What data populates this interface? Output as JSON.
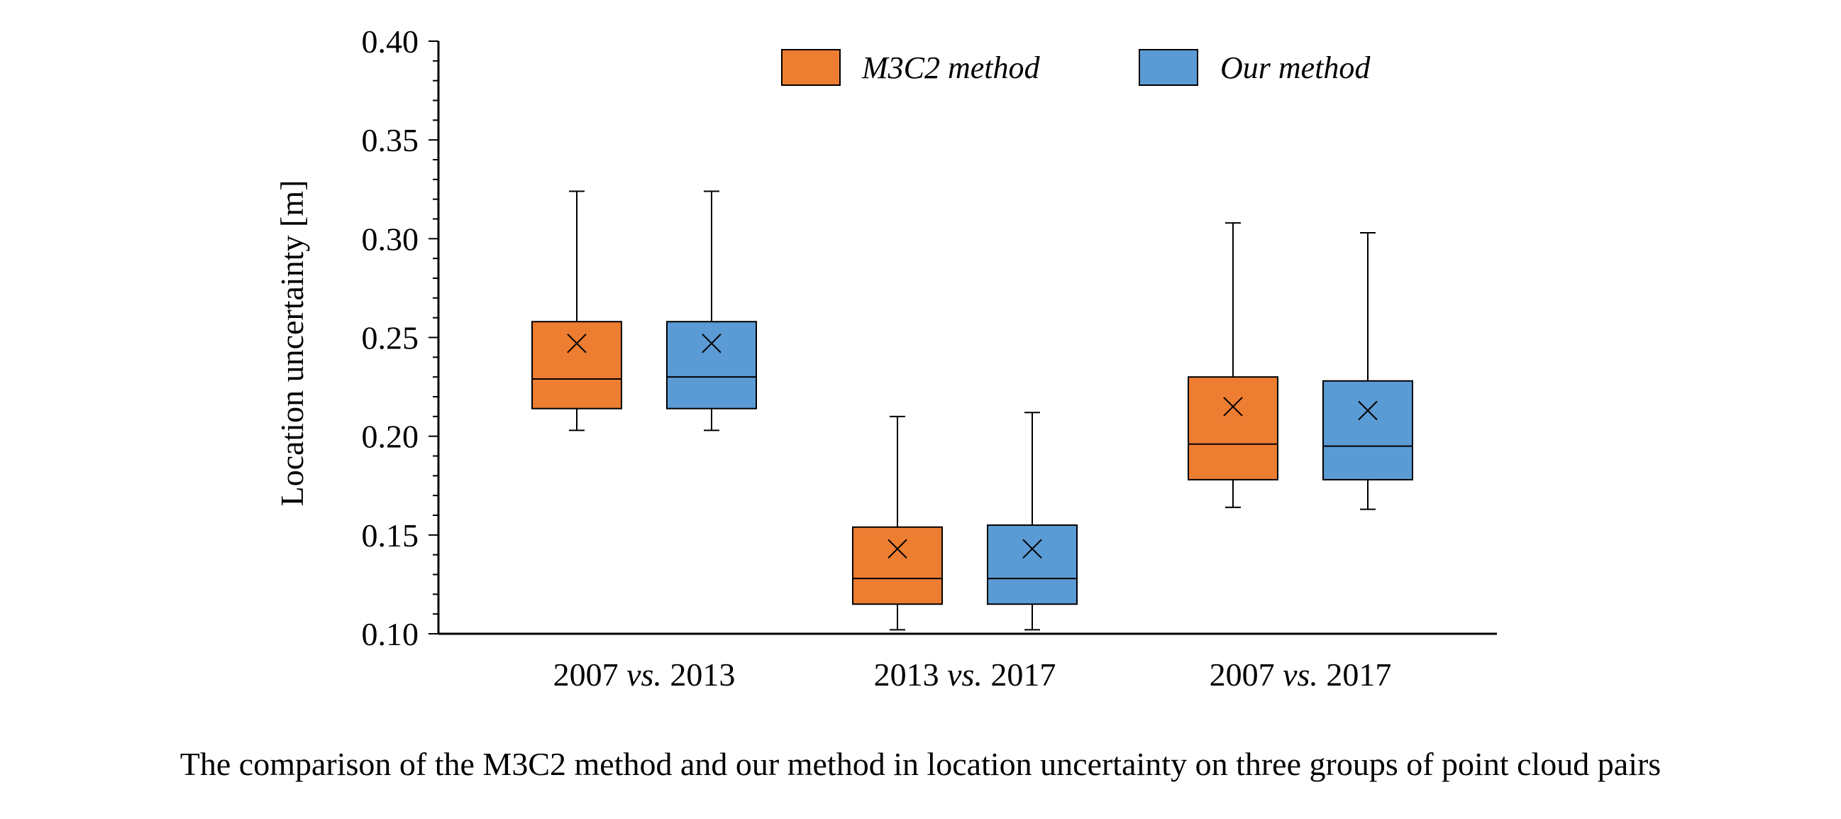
{
  "caption": "The comparison of the M3C2 method and our method in location uncertainty on three groups of point cloud pairs",
  "chart_data": {
    "type": "box",
    "ylabel": "Location uncertainty [m]",
    "ylim": [
      0.1,
      0.4
    ],
    "yticks": [
      "0.10",
      "0.15",
      "0.20",
      "0.25",
      "0.30",
      "0.35",
      "0.40"
    ],
    "categories": [
      {
        "pre": "2007 ",
        "em": "vs.",
        "post": " 2013"
      },
      {
        "pre": "2013 ",
        "em": "vs.",
        "post": " 2017"
      },
      {
        "pre": "2007 ",
        "em": "vs.",
        "post": " 2017"
      }
    ],
    "legend_position": "top-center",
    "series": [
      {
        "name": "M3C2 method",
        "color": "#ED7D31",
        "boxes": [
          {
            "min": 0.203,
            "q1": 0.214,
            "median": 0.229,
            "q3": 0.258,
            "max": 0.324,
            "mean": 0.247
          },
          {
            "min": 0.102,
            "q1": 0.115,
            "median": 0.128,
            "q3": 0.154,
            "max": 0.21,
            "mean": 0.143
          },
          {
            "min": 0.164,
            "q1": 0.178,
            "median": 0.196,
            "q3": 0.23,
            "max": 0.308,
            "mean": 0.215
          }
        ]
      },
      {
        "name": "Our method",
        "color": "#5B9BD5",
        "boxes": [
          {
            "min": 0.203,
            "q1": 0.214,
            "median": 0.23,
            "q3": 0.258,
            "max": 0.324,
            "mean": 0.247
          },
          {
            "min": 0.102,
            "q1": 0.115,
            "median": 0.128,
            "q3": 0.155,
            "max": 0.212,
            "mean": 0.143
          },
          {
            "min": 0.163,
            "q1": 0.178,
            "median": 0.195,
            "q3": 0.228,
            "max": 0.303,
            "mean": 0.213
          }
        ]
      }
    ]
  }
}
